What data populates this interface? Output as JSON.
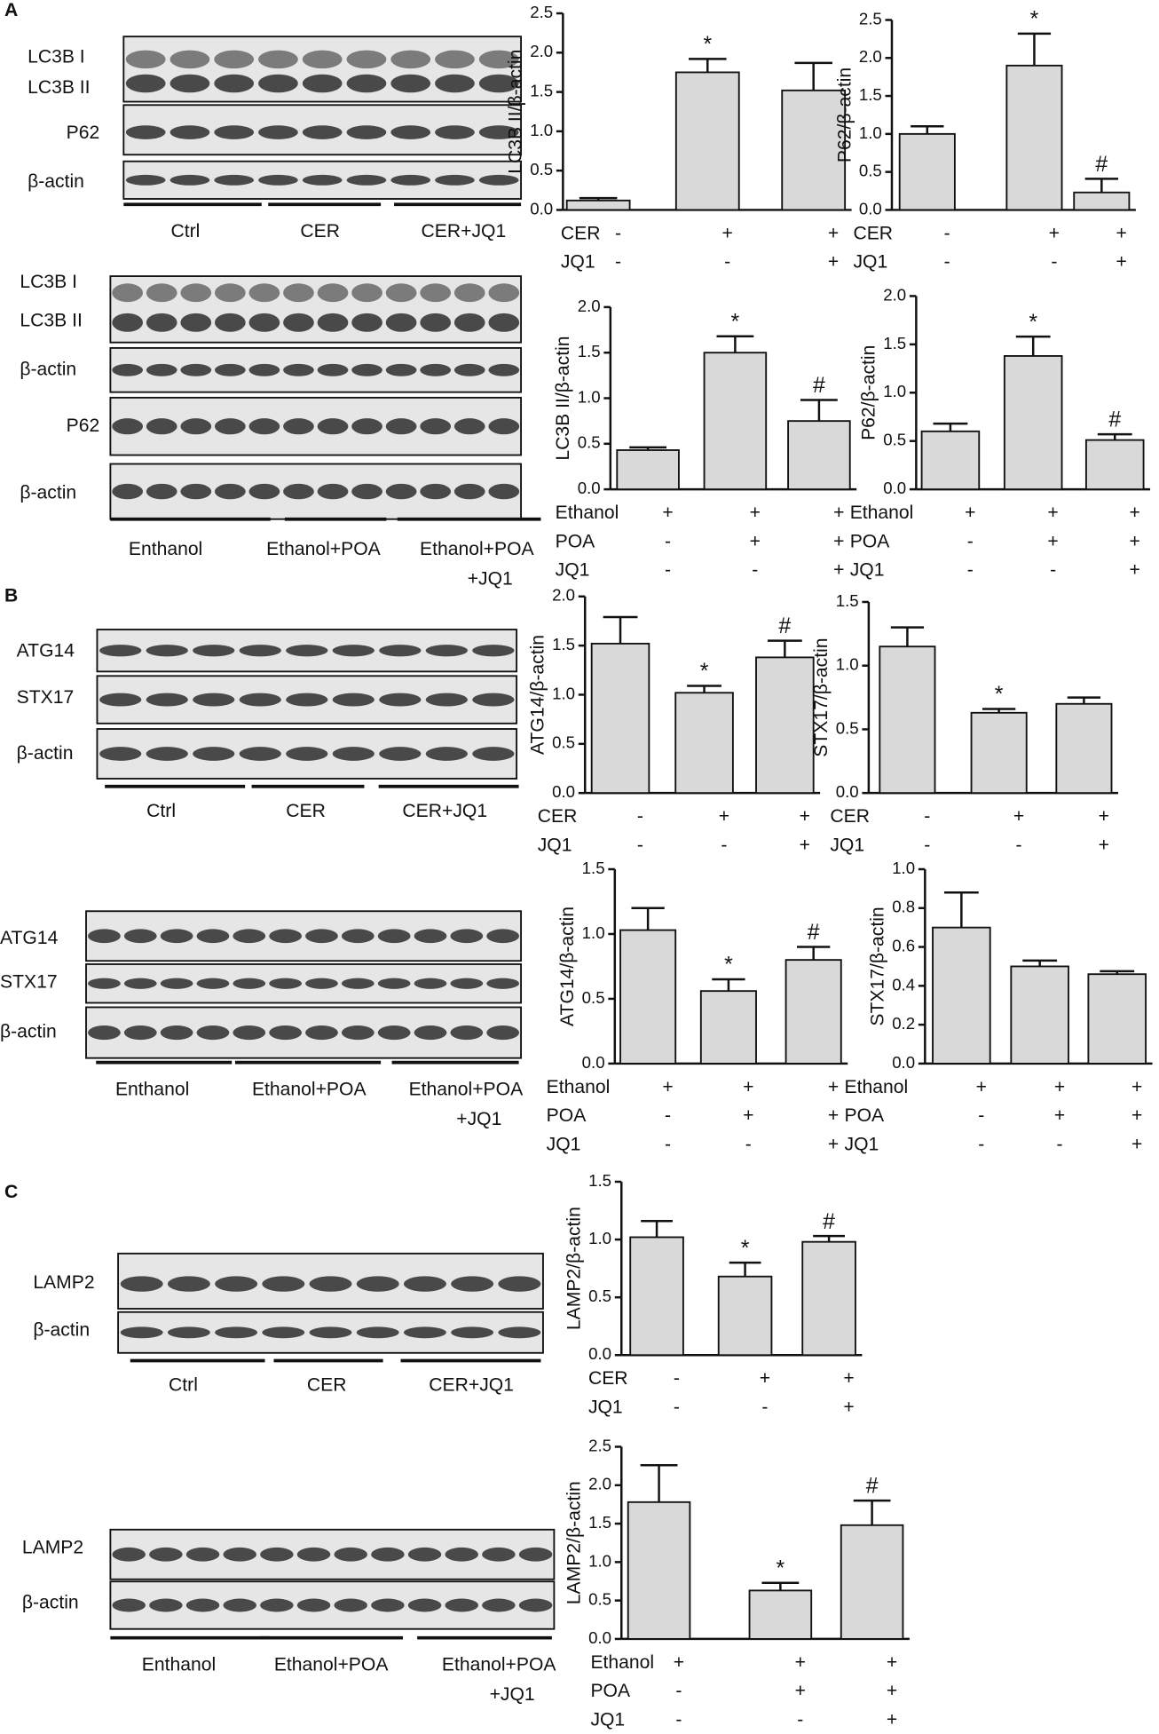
{
  "panels": [
    "A",
    "B",
    "C"
  ],
  "blots": [
    {
      "rows": [
        "LC3B I",
        "LC3B II",
        "P62",
        "β-actin"
      ],
      "groups": [
        "Ctrl",
        "CER",
        "CER+JQ1"
      ]
    },
    {
      "rows": [
        "LC3B I",
        "LC3B II",
        "β-actin",
        "P62",
        "β-actin"
      ],
      "groups": [
        "Enthanol",
        "Ethanol+POA",
        [
          "Ethanol+POA",
          "+JQ1"
        ]
      ]
    },
    {
      "rows": [
        "ATG14",
        "STX17",
        "β-actin"
      ],
      "groups": [
        "Ctrl",
        "CER",
        "CER+JQ1"
      ]
    },
    {
      "rows": [
        "ATG14",
        "STX17",
        "β-actin"
      ],
      "groups": [
        "Enthanol",
        "Ethanol+POA",
        [
          "Ethanol+POA",
          "+JQ1"
        ]
      ]
    },
    {
      "rows": [
        "LAMP2",
        "β-actin"
      ],
      "groups": [
        "Ctrl",
        "CER",
        "CER+JQ1"
      ]
    },
    {
      "rows": [
        "LAMP2",
        "β-actin"
      ],
      "groups": [
        "Enthanol",
        "Ethanol+POA",
        [
          "Ethanol+POA",
          "+JQ1"
        ]
      ]
    }
  ],
  "chart_data": [
    {
      "type": "bar",
      "y_label": "LC3B II/β-actin",
      "color": "#d9d9d9",
      "ylim": [
        0,
        2.5
      ],
      "yticks": [
        {
          "value": 0,
          "label": "0.0"
        },
        0.5,
        {
          "value": 1,
          "label": "1.0"
        },
        1.5,
        {
          "value": 2,
          "label": "2.0"
        },
        2.5
      ],
      "series": [
        {
          "values": [
            0.12,
            1.75,
            1.52
          ],
          "errors": [
            0.03,
            0.17,
            0.35
          ]
        }
      ],
      "annotations": [
        null,
        "*",
        null
      ],
      "conditions": [
        {
          "name": "CER",
          "values": [
            "-",
            "+",
            "+"
          ]
        },
        {
          "name": "JQ1",
          "values": [
            "-",
            "-",
            "+"
          ]
        }
      ]
    },
    {
      "type": "bar",
      "y_label": "P62/β-actin",
      "color": "#d9d9d9",
      "ylim": [
        0,
        2.5
      ],
      "yticks": [
        {
          "value": 0,
          "label": "0.0"
        },
        0.5,
        {
          "value": 1,
          "label": "1.0"
        },
        1.5,
        {
          "value": 2,
          "label": "2.0"
        },
        2.5
      ],
      "series": [
        {
          "values": [
            1.0,
            1.9,
            0.23
          ],
          "errors": [
            0.1,
            0.42,
            0.18
          ]
        }
      ],
      "annotations": [
        null,
        "*",
        "#"
      ],
      "conditions": [
        {
          "name": "CER",
          "values": [
            "-",
            "+",
            "+"
          ]
        },
        {
          "name": "JQ1",
          "values": [
            "-",
            "-",
            "+"
          ]
        }
      ]
    },
    {
      "type": "bar",
      "y_label": "LC3B II/β-actin",
      "color": "#d9d9d9",
      "ylim": [
        0,
        2
      ],
      "yticks": [
        {
          "value": 0,
          "label": "0.0"
        },
        0.5,
        {
          "value": 1,
          "label": "1.0"
        },
        1.5,
        {
          "value": 2,
          "label": "2.0"
        }
      ],
      "series": [
        {
          "values": [
            0.43,
            1.5,
            0.75
          ],
          "errors": [
            0.03,
            0.18,
            0.23
          ]
        }
      ],
      "annotations": [
        null,
        "*",
        "#"
      ],
      "conditions": [
        {
          "name": "Ethanol",
          "values": [
            "+",
            "+",
            "+"
          ]
        },
        {
          "name": "POA",
          "values": [
            "-",
            "+",
            "+"
          ]
        },
        {
          "name": "JQ1",
          "values": [
            "-",
            "-",
            "+"
          ]
        }
      ]
    },
    {
      "type": "bar",
      "y_label": "P62/β-actin",
      "color": "#d9d9d9",
      "ylim": [
        0,
        2
      ],
      "yticks": [
        {
          "value": 0,
          "label": "0.0"
        },
        0.5,
        {
          "value": 1,
          "label": "1.0"
        },
        1.5,
        {
          "value": 2,
          "label": "2.0"
        }
      ],
      "series": [
        {
          "values": [
            0.6,
            1.38,
            0.51
          ],
          "errors": [
            0.08,
            0.2,
            0.06
          ]
        }
      ],
      "annotations": [
        null,
        "*",
        "#"
      ],
      "conditions": [
        {
          "name": "Ethanol",
          "values": [
            "+",
            "+",
            "+"
          ]
        },
        {
          "name": "POA",
          "values": [
            "-",
            "+",
            "+"
          ]
        },
        {
          "name": "JQ1",
          "values": [
            "-",
            "-",
            "+"
          ]
        }
      ]
    },
    {
      "type": "bar",
      "y_label": "ATG14/β-actin",
      "color": "#d9d9d9",
      "ylim": [
        0,
        2
      ],
      "yticks": [
        {
          "value": 0,
          "label": "0.0"
        },
        0.5,
        {
          "value": 1,
          "label": "1.0"
        },
        1.5,
        {
          "value": 2,
          "label": "2.0"
        }
      ],
      "series": [
        {
          "values": [
            1.52,
            1.02,
            1.38
          ],
          "errors": [
            0.27,
            0.07,
            0.17
          ]
        }
      ],
      "annotations": [
        null,
        "*",
        "#"
      ],
      "conditions": [
        {
          "name": "CER",
          "values": [
            "-",
            "+",
            "+"
          ]
        },
        {
          "name": "JQ1",
          "values": [
            "-",
            "-",
            "+"
          ]
        }
      ]
    },
    {
      "type": "bar",
      "y_label": "STX17/β-actin",
      "color": "#d9d9d9",
      "ylim": [
        0,
        1.5
      ],
      "yticks": [
        {
          "value": 0,
          "label": "0.0"
        },
        0.5,
        {
          "value": 1,
          "label": "1.0"
        },
        1.5
      ],
      "series": [
        {
          "values": [
            1.15,
            0.63,
            0.7
          ],
          "errors": [
            0.15,
            0.03,
            0.05
          ]
        }
      ],
      "annotations": [
        null,
        "*",
        null
      ],
      "conditions": [
        {
          "name": "CER",
          "values": [
            "-",
            "+",
            "+"
          ]
        },
        {
          "name": "JQ1",
          "values": [
            "-",
            "-",
            "+"
          ]
        }
      ]
    },
    {
      "type": "bar",
      "y_label": "ATG14/β-actin",
      "color": "#d9d9d9",
      "ylim": [
        0,
        1.5
      ],
      "yticks": [
        {
          "value": 0,
          "label": "0.0"
        },
        0.5,
        {
          "value": 1,
          "label": "1.0"
        },
        1.5
      ],
      "series": [
        {
          "values": [
            1.03,
            0.56,
            0.8
          ],
          "errors": [
            0.17,
            0.09,
            0.1
          ]
        }
      ],
      "annotations": [
        null,
        "*",
        "#"
      ],
      "conditions": [
        {
          "name": "Ethanol",
          "values": [
            "+",
            "+",
            "+"
          ]
        },
        {
          "name": "POA",
          "values": [
            "-",
            "+",
            "+"
          ]
        },
        {
          "name": "JQ1",
          "values": [
            "-",
            "-",
            "+"
          ]
        }
      ]
    },
    {
      "type": "bar",
      "y_label": "STX17/β-actin",
      "color": "#d9d9d9",
      "ylim": [
        0,
        1
      ],
      "yticks": [
        {
          "value": 0,
          "label": "0.0"
        },
        0.2,
        0.4,
        0.6,
        0.8,
        {
          "value": 1,
          "label": "1.0"
        }
      ],
      "series": [
        {
          "values": [
            0.7,
            0.5,
            0.46
          ],
          "errors": [
            0.18,
            0.03,
            0.015
          ]
        }
      ],
      "annotations": [
        null,
        null,
        null
      ],
      "conditions": [
        {
          "name": "Ethanol",
          "values": [
            "+",
            "+",
            "+"
          ]
        },
        {
          "name": "POA",
          "values": [
            "-",
            "+",
            "+"
          ]
        },
        {
          "name": "JQ1",
          "values": [
            "-",
            "-",
            "+"
          ]
        }
      ]
    },
    {
      "type": "bar",
      "y_label": "LAMP2/β-actin",
      "color": "#d9d9d9",
      "ylim": [
        0,
        1.5
      ],
      "yticks": [
        {
          "value": 0,
          "label": "0.0"
        },
        0.5,
        {
          "value": 1,
          "label": "1.0"
        },
        1.5
      ],
      "series": [
        {
          "values": [
            1.02,
            0.68,
            0.98
          ],
          "errors": [
            0.14,
            0.12,
            0.05
          ]
        }
      ],
      "annotations": [
        null,
        "*",
        "#"
      ],
      "conditions": [
        {
          "name": "CER",
          "values": [
            "-",
            "+",
            "+"
          ]
        },
        {
          "name": "JQ1",
          "values": [
            "-",
            "-",
            "+"
          ]
        }
      ]
    },
    {
      "type": "bar",
      "y_label": "LAMP2/β-actin",
      "color": "#d9d9d9",
      "ylim": [
        0,
        2.5
      ],
      "yticks": [
        {
          "value": 0,
          "label": "0.0"
        },
        0.5,
        {
          "value": 1,
          "label": "1.0"
        },
        1.5,
        {
          "value": 2,
          "label": "2.0"
        },
        2.5
      ],
      "series": [
        {
          "values": [
            1.78,
            0.63,
            1.48
          ],
          "errors": [
            0.48,
            0.1,
            0.32
          ]
        }
      ],
      "annotations": [
        null,
        "*",
        "#"
      ],
      "conditions": [
        {
          "name": "Ethanol",
          "values": [
            "+",
            "+",
            "+"
          ]
        },
        {
          "name": "POA",
          "values": [
            "-",
            "+",
            "+"
          ]
        },
        {
          "name": "JQ1",
          "values": [
            "-",
            "-",
            "+"
          ]
        }
      ]
    }
  ]
}
